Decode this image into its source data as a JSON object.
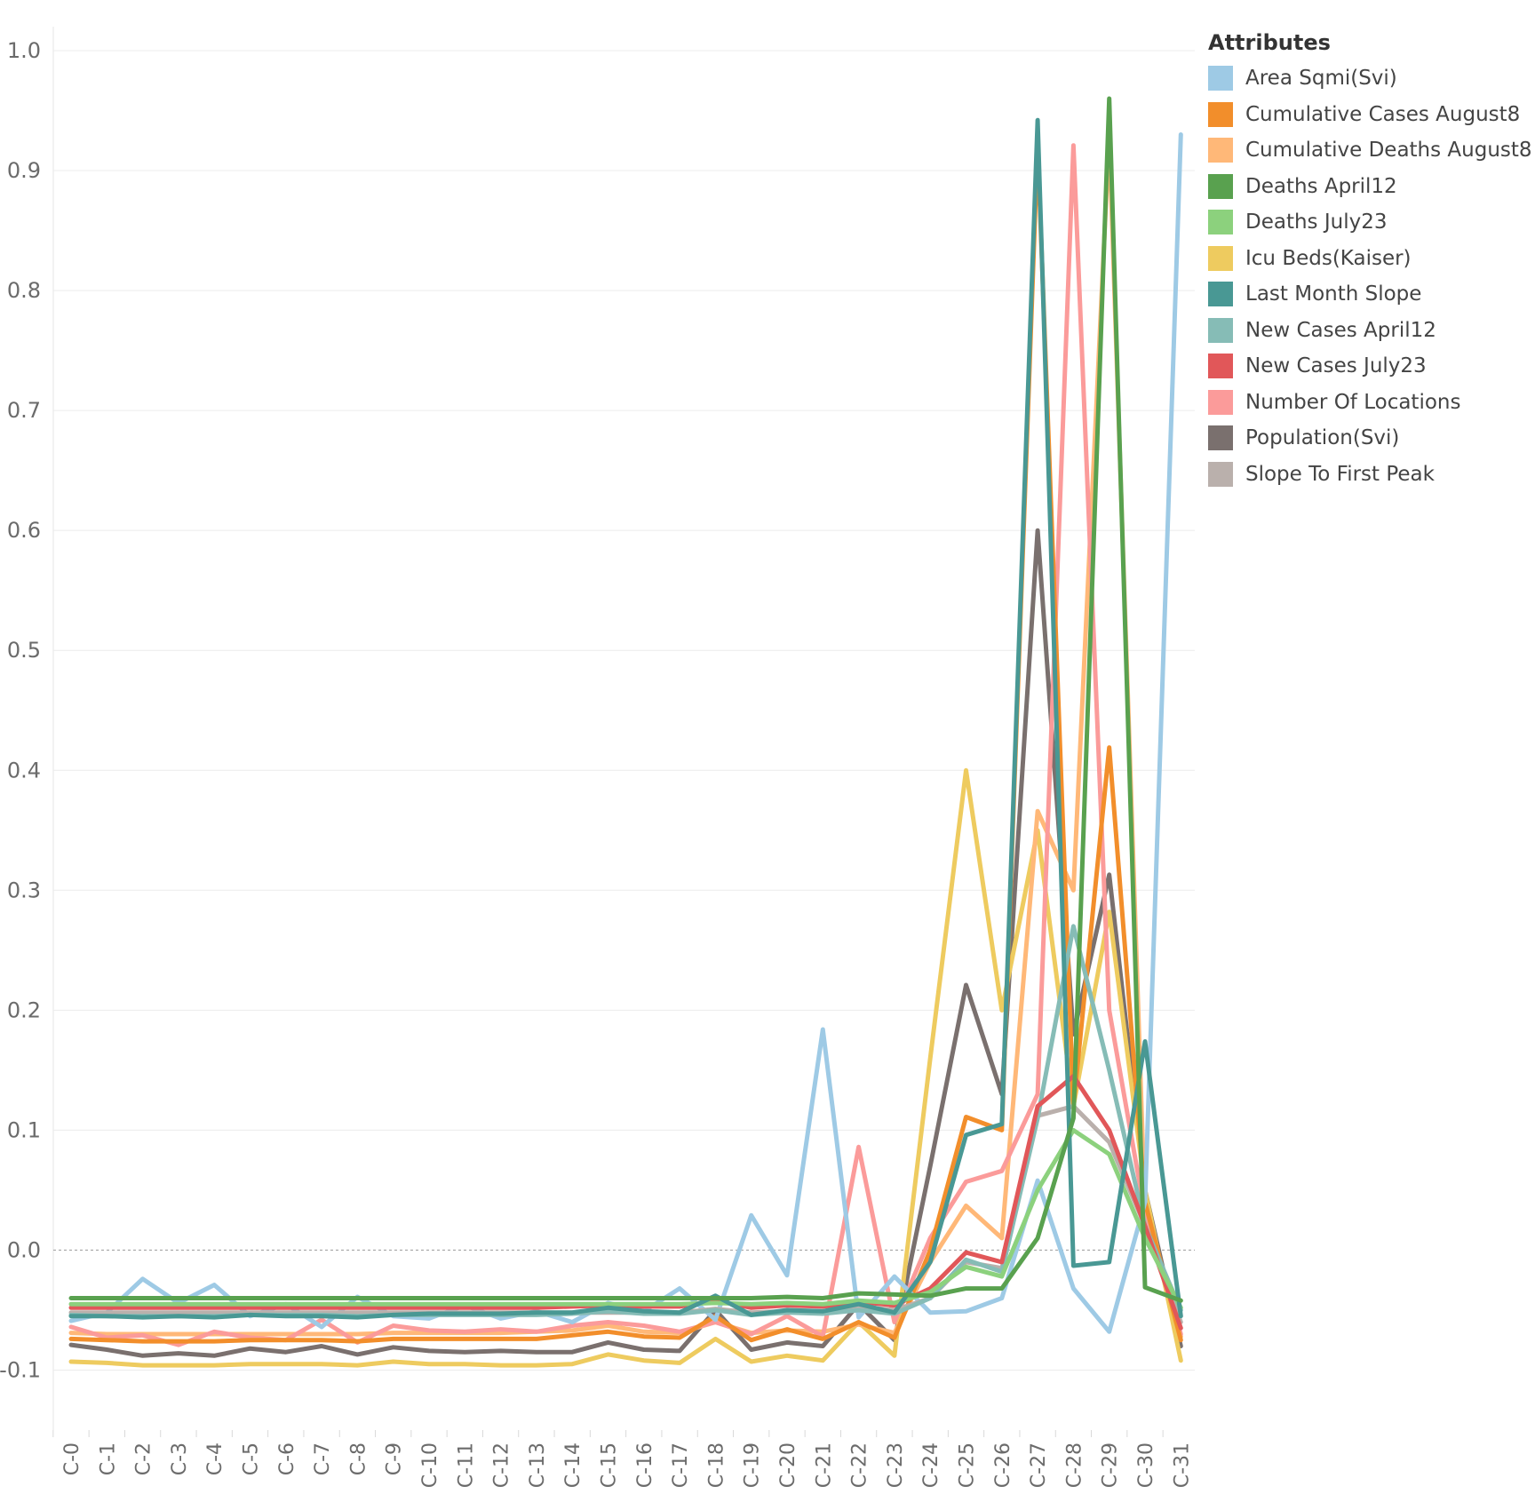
{
  "chart_data": {
    "type": "line",
    "xlabel": "",
    "ylabel": "",
    "ylim": [
      -0.15,
      1.02
    ],
    "yticks": [
      "1.0",
      "0.9",
      "0.8",
      "0.7",
      "0.6",
      "0.5",
      "0.4",
      "0.3",
      "0.2",
      "0.1",
      "0.0",
      "-0.1"
    ],
    "ytick_values": [
      1.0,
      0.9,
      0.8,
      0.7,
      0.6,
      0.5,
      0.4,
      0.3,
      0.2,
      0.1,
      0.0,
      -0.1
    ],
    "zero_line": "dashed",
    "grid": "horizontal",
    "legend": {
      "title": "Attributes",
      "position": "right"
    },
    "categories": [
      "C-0",
      "C-1",
      "C-2",
      "C-3",
      "C-4",
      "C-5",
      "C-6",
      "C-7",
      "C-8",
      "C-9",
      "C-10",
      "C-11",
      "C-12",
      "C-13",
      "C-14",
      "C-15",
      "C-16",
      "C-17",
      "C-18",
      "C-19",
      "C-20",
      "C-21",
      "C-22",
      "C-23",
      "C-24",
      "C-25",
      "C-26",
      "C-27",
      "C-28",
      "C-29",
      "C-30",
      "C-31"
    ],
    "series": [
      {
        "name": "Population(Svi)",
        "color": "#7a706e",
        "values": [
          -0.079,
          -0.083,
          -0.088,
          -0.086,
          -0.088,
          -0.082,
          -0.085,
          -0.08,
          -0.087,
          -0.081,
          -0.084,
          -0.085,
          -0.084,
          -0.085,
          -0.085,
          -0.077,
          -0.083,
          -0.084,
          -0.05,
          -0.083,
          -0.077,
          -0.08,
          -0.045,
          -0.075,
          0.07,
          0.221,
          0.13,
          0.6,
          0.18,
          0.313,
          0.05,
          -0.08
        ]
      },
      {
        "name": "Icu Beds(Kaiser)",
        "color": "#eecb5f",
        "values": [
          -0.093,
          -0.094,
          -0.096,
          -0.096,
          -0.096,
          -0.095,
          -0.095,
          -0.095,
          -0.096,
          -0.093,
          -0.095,
          -0.095,
          -0.096,
          -0.096,
          -0.095,
          -0.087,
          -0.092,
          -0.094,
          -0.074,
          -0.093,
          -0.088,
          -0.092,
          -0.06,
          -0.088,
          0.16,
          0.4,
          0.2,
          0.35,
          0.12,
          0.282,
          0.05,
          -0.092
        ]
      },
      {
        "name": "Cumulative Deaths August8",
        "color": "#ffb878",
        "values": [
          -0.069,
          -0.07,
          -0.07,
          -0.07,
          -0.07,
          -0.07,
          -0.07,
          -0.07,
          -0.07,
          -0.069,
          -0.069,
          -0.069,
          -0.069,
          -0.068,
          -0.067,
          -0.063,
          -0.068,
          -0.069,
          -0.06,
          -0.069,
          -0.067,
          -0.068,
          -0.062,
          -0.069,
          -0.01,
          0.037,
          0.01,
          0.366,
          0.3,
          0.93,
          0.03,
          -0.072
        ]
      },
      {
        "name": "Number Of Locations",
        "color": "#fb9b9a",
        "values": [
          -0.064,
          -0.073,
          -0.071,
          -0.079,
          -0.068,
          -0.073,
          -0.075,
          -0.058,
          -0.077,
          -0.063,
          -0.067,
          -0.068,
          -0.066,
          -0.068,
          -0.063,
          -0.06,
          -0.063,
          -0.068,
          -0.06,
          -0.07,
          -0.055,
          -0.072,
          0.086,
          -0.06,
          0.01,
          0.057,
          0.066,
          0.13,
          0.921,
          0.2,
          0.03,
          -0.07
        ]
      },
      {
        "name": "Cumulative Cases August8",
        "color": "#f28e2b",
        "values": [
          -0.074,
          -0.075,
          -0.076,
          -0.076,
          -0.076,
          -0.075,
          -0.075,
          -0.075,
          -0.076,
          -0.074,
          -0.074,
          -0.074,
          -0.074,
          -0.074,
          -0.071,
          -0.068,
          -0.072,
          -0.073,
          -0.055,
          -0.075,
          -0.066,
          -0.074,
          -0.06,
          -0.073,
          0.0,
          0.111,
          0.1,
          0.922,
          0.12,
          0.419,
          0.04,
          -0.075
        ]
      },
      {
        "name": "Area Sqmi(Svi)",
        "color": "#9ecae5",
        "values": [
          -0.059,
          -0.052,
          -0.024,
          -0.044,
          -0.029,
          -0.055,
          -0.045,
          -0.064,
          -0.039,
          -0.055,
          -0.057,
          -0.046,
          -0.057,
          -0.051,
          -0.06,
          -0.044,
          -0.051,
          -0.032,
          -0.058,
          0.029,
          -0.021,
          0.184,
          -0.056,
          -0.022,
          -0.052,
          -0.051,
          -0.04,
          0.058,
          -0.032,
          -0.068,
          0.04,
          0.93
        ]
      },
      {
        "name": "Slope To First Peak",
        "color": "#bab0ac",
        "values": [
          -0.052,
          -0.052,
          -0.052,
          -0.052,
          -0.052,
          -0.052,
          -0.052,
          -0.052,
          -0.052,
          -0.052,
          -0.052,
          -0.052,
          -0.052,
          -0.052,
          -0.052,
          -0.052,
          -0.052,
          -0.052,
          -0.049,
          -0.052,
          -0.051,
          -0.052,
          -0.047,
          -0.05,
          -0.04,
          -0.01,
          -0.015,
          0.112,
          0.12,
          0.09,
          0.02,
          -0.06
        ]
      },
      {
        "name": "New Cases April12",
        "color": "#86bcb6",
        "values": [
          -0.054,
          -0.055,
          -0.055,
          -0.055,
          -0.055,
          -0.054,
          -0.054,
          -0.054,
          -0.055,
          -0.054,
          -0.054,
          -0.054,
          -0.054,
          -0.054,
          -0.053,
          -0.051,
          -0.053,
          -0.053,
          -0.05,
          -0.054,
          -0.052,
          -0.053,
          -0.05,
          -0.053,
          -0.04,
          -0.008,
          -0.018,
          0.11,
          0.27,
          0.15,
          0.02,
          -0.05
        ]
      },
      {
        "name": "New Cases July23",
        "color": "#e15759",
        "values": [
          -0.048,
          -0.048,
          -0.048,
          -0.048,
          -0.048,
          -0.048,
          -0.048,
          -0.048,
          -0.048,
          -0.048,
          -0.048,
          -0.048,
          -0.048,
          -0.048,
          -0.047,
          -0.046,
          -0.047,
          -0.047,
          -0.042,
          -0.048,
          -0.046,
          -0.047,
          -0.043,
          -0.046,
          -0.032,
          -0.002,
          -0.01,
          0.12,
          0.145,
          0.1,
          0.02,
          -0.065
        ]
      },
      {
        "name": "Deaths July23",
        "color": "#8cd17d",
        "values": [
          -0.045,
          -0.045,
          -0.045,
          -0.045,
          -0.045,
          -0.045,
          -0.045,
          -0.045,
          -0.045,
          -0.045,
          -0.045,
          -0.045,
          -0.045,
          -0.045,
          -0.045,
          -0.045,
          -0.045,
          -0.045,
          -0.044,
          -0.045,
          -0.044,
          -0.045,
          -0.042,
          -0.044,
          -0.035,
          -0.014,
          -0.022,
          0.05,
          0.1,
          0.08,
          0.01,
          -0.048
        ]
      },
      {
        "name": "Last Month Slope",
        "color": "#499894",
        "values": [
          -0.055,
          -0.055,
          -0.056,
          -0.055,
          -0.056,
          -0.054,
          -0.055,
          -0.055,
          -0.056,
          -0.054,
          -0.053,
          -0.053,
          -0.053,
          -0.052,
          -0.052,
          -0.048,
          -0.051,
          -0.052,
          -0.038,
          -0.054,
          -0.05,
          -0.051,
          -0.045,
          -0.052,
          -0.01,
          0.096,
          0.105,
          0.942,
          -0.013,
          -0.01,
          0.174,
          -0.055
        ]
      },
      {
        "name": "Deaths April12",
        "color": "#59a14f",
        "values": [
          -0.04,
          -0.04,
          -0.04,
          -0.04,
          -0.04,
          -0.04,
          -0.04,
          -0.04,
          -0.04,
          -0.04,
          -0.04,
          -0.04,
          -0.04,
          -0.04,
          -0.04,
          -0.04,
          -0.04,
          -0.04,
          -0.04,
          -0.04,
          -0.039,
          -0.04,
          -0.036,
          -0.037,
          -0.038,
          -0.032,
          -0.032,
          0.01,
          0.11,
          0.96,
          -0.031,
          -0.042
        ]
      }
    ]
  },
  "legend_order": [
    "Area Sqmi(Svi)",
    "Cumulative Cases August8",
    "Cumulative Deaths August8",
    "Deaths April12",
    "Deaths July23",
    "Icu Beds(Kaiser)",
    "Last Month Slope",
    "New Cases April12",
    "New Cases July23",
    "Number Of Locations",
    "Population(Svi)",
    "Slope To First Peak"
  ]
}
